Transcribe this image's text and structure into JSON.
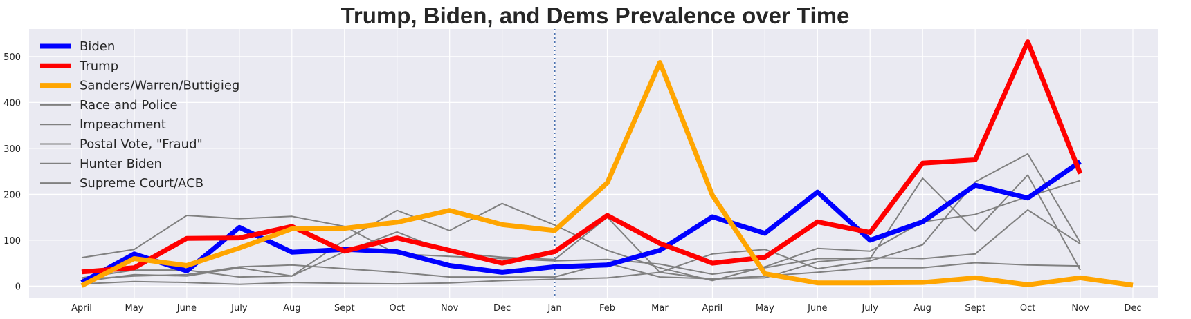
{
  "chart_data": {
    "type": "line",
    "title": "Trump, Biden, and Dems Prevalence over Time",
    "xlabel": "",
    "ylabel": "",
    "categories": [
      "April",
      "May",
      "June",
      "July",
      "Aug",
      "Sept",
      "Oct",
      "Nov",
      "Dec",
      "Jan",
      "Feb",
      "Mar",
      "April",
      "May",
      "June",
      "July",
      "Aug",
      "Sept",
      "Oct",
      "Nov",
      "Dec"
    ],
    "ylim": [
      -25,
      560
    ],
    "yticks": [
      0,
      100,
      200,
      300,
      400,
      500
    ],
    "grid": true,
    "legend_position": "top-left",
    "vline": {
      "category": "Jan",
      "style": "dotted",
      "color": "#4c72b0"
    },
    "series": [
      {
        "name": "Biden",
        "color": "#0000ff",
        "emphasis": true,
        "values": [
          8,
          70,
          33,
          128,
          74,
          80,
          75,
          45,
          30,
          42,
          46,
          78,
          151,
          115,
          205,
          100,
          140,
          220,
          192,
          271,
          null
        ]
      },
      {
        "name": "Trump",
        "color": "#ff0000",
        "emphasis": true,
        "values": [
          31,
          40,
          104,
          105,
          130,
          76,
          105,
          78,
          50,
          75,
          154,
          93,
          50,
          63,
          140,
          117,
          268,
          275,
          532,
          245,
          null
        ]
      },
      {
        "name": "Sanders/Warren/Buttigieg",
        "color": "#ffa500",
        "emphasis": true,
        "values": [
          1,
          60,
          45,
          83,
          125,
          126,
          139,
          165,
          134,
          121,
          225,
          487,
          198,
          27,
          7,
          7,
          8,
          18,
          3,
          18,
          2
        ]
      },
      {
        "name": "Race and Police",
        "color": "#808080",
        "emphasis": false,
        "values": [
          62,
          80,
          154,
          147,
          152,
          130,
          70,
          65,
          60,
          55,
          58,
          48,
          26,
          40,
          60,
          60,
          235,
          120,
          242,
          35,
          null
        ]
      },
      {
        "name": "Impeachment",
        "color": "#808080",
        "emphasis": false,
        "values": [
          10,
          25,
          22,
          40,
          22,
          100,
          165,
          121,
          180,
          133,
          78,
          40,
          12,
          42,
          82,
          76,
          140,
          156,
          195,
          230,
          null
        ]
      },
      {
        "name": "Postal Vote, \"Fraud\"",
        "color": "#808080",
        "emphasis": false,
        "values": [
          18,
          35,
          35,
          20,
          22,
          75,
          118,
          73,
          63,
          58,
          150,
          30,
          70,
          80,
          38,
          55,
          90,
          227,
          288,
          95,
          null
        ]
      },
      {
        "name": "Hunter Biden",
        "color": "#808080",
        "emphasis": false,
        "values": [
          15,
          22,
          25,
          42,
          46,
          38,
          30,
          20,
          20,
          20,
          50,
          20,
          16,
          18,
          53,
          62,
          60,
          70,
          166,
          92,
          null
        ]
      },
      {
        "name": "Supreme Court/ACB",
        "color": "#808080",
        "emphasis": false,
        "values": [
          5,
          10,
          8,
          4,
          8,
          6,
          5,
          7,
          12,
          15,
          18,
          30,
          15,
          22,
          30,
          40,
          40,
          51,
          46,
          44,
          null
        ]
      }
    ]
  }
}
